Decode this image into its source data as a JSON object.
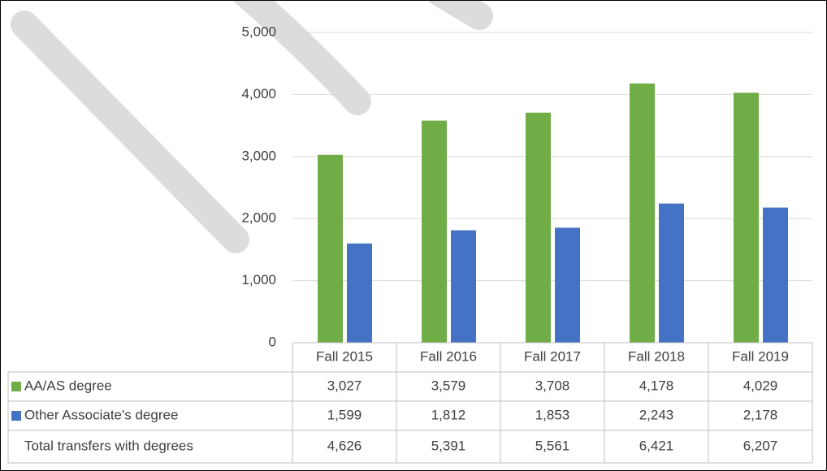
{
  "chart_data": {
    "type": "bar",
    "categories": [
      "Fall 2015",
      "Fall 2016",
      "Fall 2017",
      "Fall 2018",
      "Fall 2019"
    ],
    "series": [
      {
        "name": "AA/AS degree",
        "color": "#70ad47",
        "values": [
          3027,
          3579,
          3708,
          4178,
          4029
        ],
        "value_labels": [
          "3,027",
          "3,579",
          "3,708",
          "4,178",
          "4,029"
        ]
      },
      {
        "name": "Other Associate's degree",
        "color": "#4472c4",
        "values": [
          1599,
          1812,
          1853,
          2243,
          2178
        ],
        "value_labels": [
          "1,599",
          "1,812",
          "1,853",
          "2,243",
          "2,178"
        ]
      }
    ],
    "total": {
      "name": "Total transfers with degrees",
      "values": [
        4626,
        5391,
        5561,
        6421,
        6207
      ],
      "value_labels": [
        "4,626",
        "5,391",
        "5,561",
        "6,421",
        "6,207"
      ]
    },
    "ylim": [
      0,
      5000
    ],
    "yticks": [
      0,
      {
        "value": 1000,
        "label": "1,000"
      },
      {
        "value": 2000,
        "label": "2,000"
      },
      {
        "value": 3000,
        "label": "3,000"
      },
      {
        "value": 4000,
        "label": "4,000"
      },
      {
        "value": 5000,
        "label": "5,000"
      }
    ],
    "grid": true
  }
}
